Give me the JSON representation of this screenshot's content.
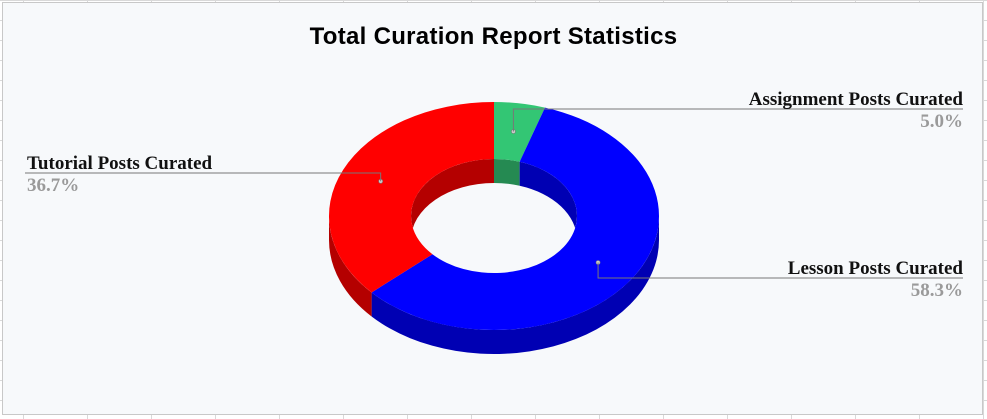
{
  "chart_data": {
    "type": "pie",
    "variant": "3d-doughnut",
    "title": "Total Curation Report Statistics",
    "slices": [
      {
        "label": "Assignment Posts Curated",
        "value": 5.0,
        "display": "5.0%",
        "color": "#33c674",
        "side_color": "#258a52"
      },
      {
        "label": "Lesson Posts Curated",
        "value": 58.3,
        "display": "58.3%",
        "color": "#0000ff",
        "side_color": "#0000b3"
      },
      {
        "label": "Tutorial Posts Curated",
        "value": 36.7,
        "display": "36.7%",
        "color": "#ff0000",
        "side_color": "#b40000"
      }
    ],
    "start_angle_deg": 0,
    "direction": "clockwise",
    "background": "#f7f9fb",
    "leader_color": "#777777"
  }
}
